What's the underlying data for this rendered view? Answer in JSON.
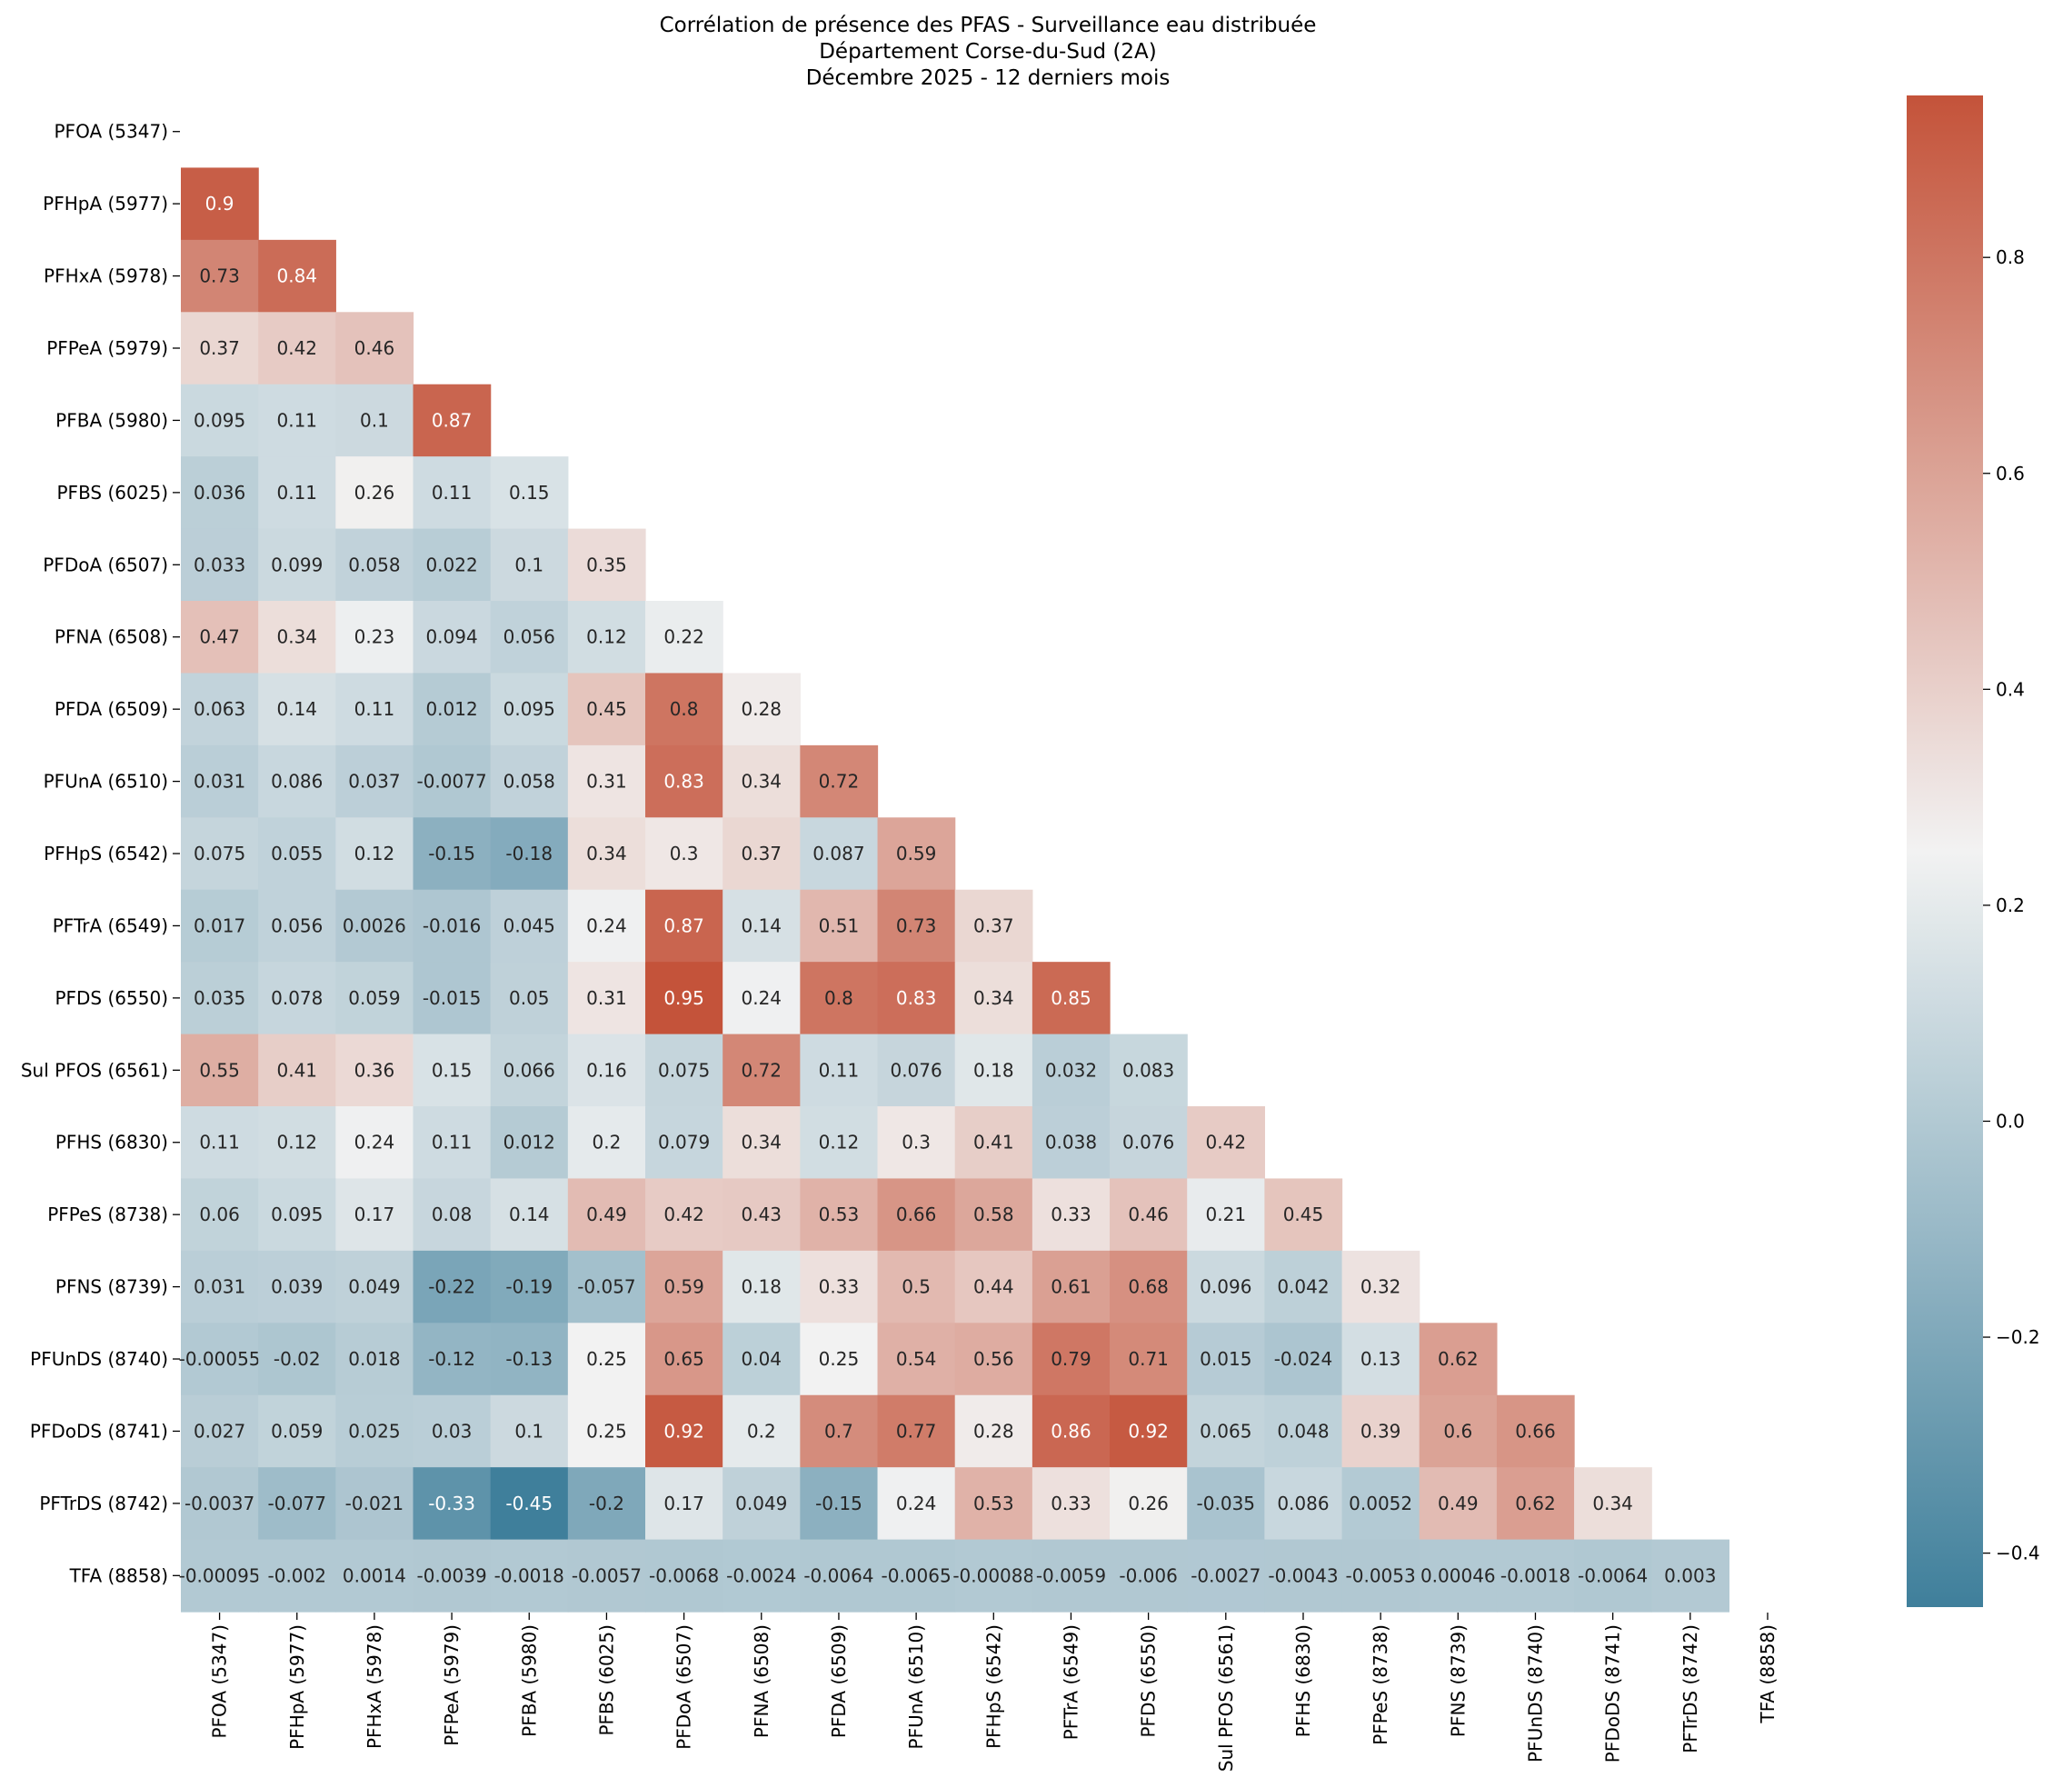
{
  "chart_data": {
    "type": "heatmap",
    "title": "Corrélation de présence des PFAS - Surveillance eau distribuée",
    "subtitle": "Département Corse-du-Sud (2A)",
    "period": "Décembre 2025 - 12 derniers mois",
    "labels": [
      "PFOA (5347)",
      "PFHpA (5977)",
      "PFHxA (5978)",
      "PFPeA (5979)",
      "PFBA (5980)",
      "PFBS (6025)",
      "PFDoA (6507)",
      "PFNA (6508)",
      "PFDA (6509)",
      "PFUnA (6510)",
      "PFHpS (6542)",
      "PFTrA (6549)",
      "PFDS (6550)",
      "Sul PFOS (6561)",
      "PFHS (6830)",
      "PFPeS (8738)",
      "PFNS (8739)",
      "PFUnDS (8740)",
      "PFDoDS (8741)",
      "PFTrDS (8742)",
      "TFA (8858)"
    ],
    "matrix_lower": [
      [],
      [
        "0.9"
      ],
      [
        "0.73",
        "0.84"
      ],
      [
        "0.37",
        "0.42",
        "0.46"
      ],
      [
        "0.095",
        "0.11",
        "0.1",
        "0.87"
      ],
      [
        "0.036",
        "0.11",
        "0.26",
        "0.11",
        "0.15"
      ],
      [
        "0.033",
        "0.099",
        "0.058",
        "0.022",
        "0.1",
        "0.35"
      ],
      [
        "0.47",
        "0.34",
        "0.23",
        "0.094",
        "0.056",
        "0.12",
        "0.22"
      ],
      [
        "0.063",
        "0.14",
        "0.11",
        "0.012",
        "0.095",
        "0.45",
        "0.8",
        "0.28"
      ],
      [
        "0.031",
        "0.086",
        "0.037",
        "-0.0077",
        "0.058",
        "0.31",
        "0.83",
        "0.34",
        "0.72"
      ],
      [
        "0.075",
        "0.055",
        "0.12",
        "-0.15",
        "-0.18",
        "0.34",
        "0.3",
        "0.37",
        "0.087",
        "0.59"
      ],
      [
        "0.017",
        "0.056",
        "0.0026",
        "-0.016",
        "0.045",
        "0.24",
        "0.87",
        "0.14",
        "0.51",
        "0.73",
        "0.37"
      ],
      [
        "0.035",
        "0.078",
        "0.059",
        "-0.015",
        "0.05",
        "0.31",
        "0.95",
        "0.24",
        "0.8",
        "0.83",
        "0.34",
        "0.85"
      ],
      [
        "0.55",
        "0.41",
        "0.36",
        "0.15",
        "0.066",
        "0.16",
        "0.075",
        "0.72",
        "0.11",
        "0.076",
        "0.18",
        "0.032",
        "0.083"
      ],
      [
        "0.11",
        "0.12",
        "0.24",
        "0.11",
        "0.012",
        "0.2",
        "0.079",
        "0.34",
        "0.12",
        "0.3",
        "0.41",
        "0.038",
        "0.076",
        "0.42"
      ],
      [
        "0.06",
        "0.095",
        "0.17",
        "0.08",
        "0.14",
        "0.49",
        "0.42",
        "0.43",
        "0.53",
        "0.66",
        "0.58",
        "0.33",
        "0.46",
        "0.21",
        "0.45"
      ],
      [
        "0.031",
        "0.039",
        "0.049",
        "-0.22",
        "-0.19",
        "-0.057",
        "0.59",
        "0.18",
        "0.33",
        "0.5",
        "0.44",
        "0.61",
        "0.68",
        "0.096",
        "0.042",
        "0.32"
      ],
      [
        "-0.00055",
        "-0.02",
        "0.018",
        "-0.12",
        "-0.13",
        "0.25",
        "0.65",
        "0.04",
        "0.25",
        "0.54",
        "0.56",
        "0.79",
        "0.71",
        "0.015",
        "-0.024",
        "0.13",
        "0.62"
      ],
      [
        "0.027",
        "0.059",
        "0.025",
        "0.03",
        "0.1",
        "0.25",
        "0.92",
        "0.2",
        "0.7",
        "0.77",
        "0.28",
        "0.86",
        "0.92",
        "0.065",
        "0.048",
        "0.39",
        "0.6",
        "0.66"
      ],
      [
        "-0.0037",
        "-0.077",
        "-0.021",
        "-0.33",
        "-0.45",
        "-0.2",
        "0.17",
        "0.049",
        "-0.15",
        "0.24",
        "0.53",
        "0.33",
        "0.26",
        "-0.035",
        "0.086",
        "0.0052",
        "0.49",
        "0.62",
        "0.34"
      ],
      [
        "-0.00095",
        "-0.002",
        "0.0014",
        "-0.0039",
        "-0.0018",
        "-0.0057",
        "-0.0068",
        "-0.0024",
        "-0.0064",
        "-0.0065",
        "-0.00088",
        "-0.0059",
        "-0.006",
        "-0.0027",
        "-0.0043",
        "-0.0053",
        "0.00046",
        "-0.0018",
        "-0.0064",
        "0.003"
      ]
    ],
    "vmin": -0.45,
    "vmax": 0.95,
    "colorbar_ticks": [
      0.8,
      0.6,
      0.4,
      0.2,
      0.0,
      -0.2,
      -0.4
    ],
    "colorbar_tick_labels": [
      "0.8",
      "0.6",
      "0.4",
      "0.2",
      "0.0",
      "−0.2",
      "−0.4"
    ],
    "colormap": [
      "#3f7f9b",
      "#f2f2f2",
      "#c4533a"
    ],
    "colormap_center": 0.25,
    "text_light": "#ffffff",
    "text_dark": "#262626",
    "legend_position": "right"
  }
}
